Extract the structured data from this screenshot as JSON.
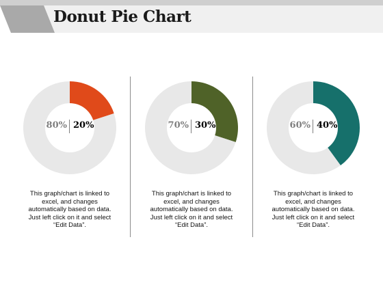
{
  "title": "Donut Pie Chart",
  "colors": {
    "track": "#e8e8e8",
    "header_bar": "#f0f0f0",
    "header_accent": "#a9a9a9"
  },
  "chart_data": [
    {
      "type": "pie",
      "style": "donut",
      "slices": [
        {
          "label": "20%",
          "value": 20,
          "color": "#e04a1a"
        },
        {
          "label": "80%",
          "value": 80,
          "color": "#e8e8e8"
        }
      ],
      "caption": [
        "This graph/chart is linked to",
        "excel, and changes",
        "automatically based on data.",
        "Just left click on it and select",
        "“Edit Data”."
      ]
    },
    {
      "type": "pie",
      "style": "donut",
      "slices": [
        {
          "label": "30%",
          "value": 30,
          "color": "#4f6228"
        },
        {
          "label": "70%",
          "value": 70,
          "color": "#e8e8e8"
        }
      ],
      "caption": [
        "This graph/chart is linked to",
        "excel, and changes",
        "automatically based on data.",
        "Just left click on it and select",
        "“Edit Data”."
      ]
    },
    {
      "type": "pie",
      "style": "donut",
      "slices": [
        {
          "label": "40%",
          "value": 40,
          "color": "#16706b"
        },
        {
          "label": "60%",
          "value": 60,
          "color": "#e8e8e8"
        }
      ],
      "caption": [
        "This graph/chart is linked to",
        "excel, and changes",
        "automatically based on data.",
        "Just left click on it and select",
        "“Edit Data”."
      ]
    }
  ]
}
